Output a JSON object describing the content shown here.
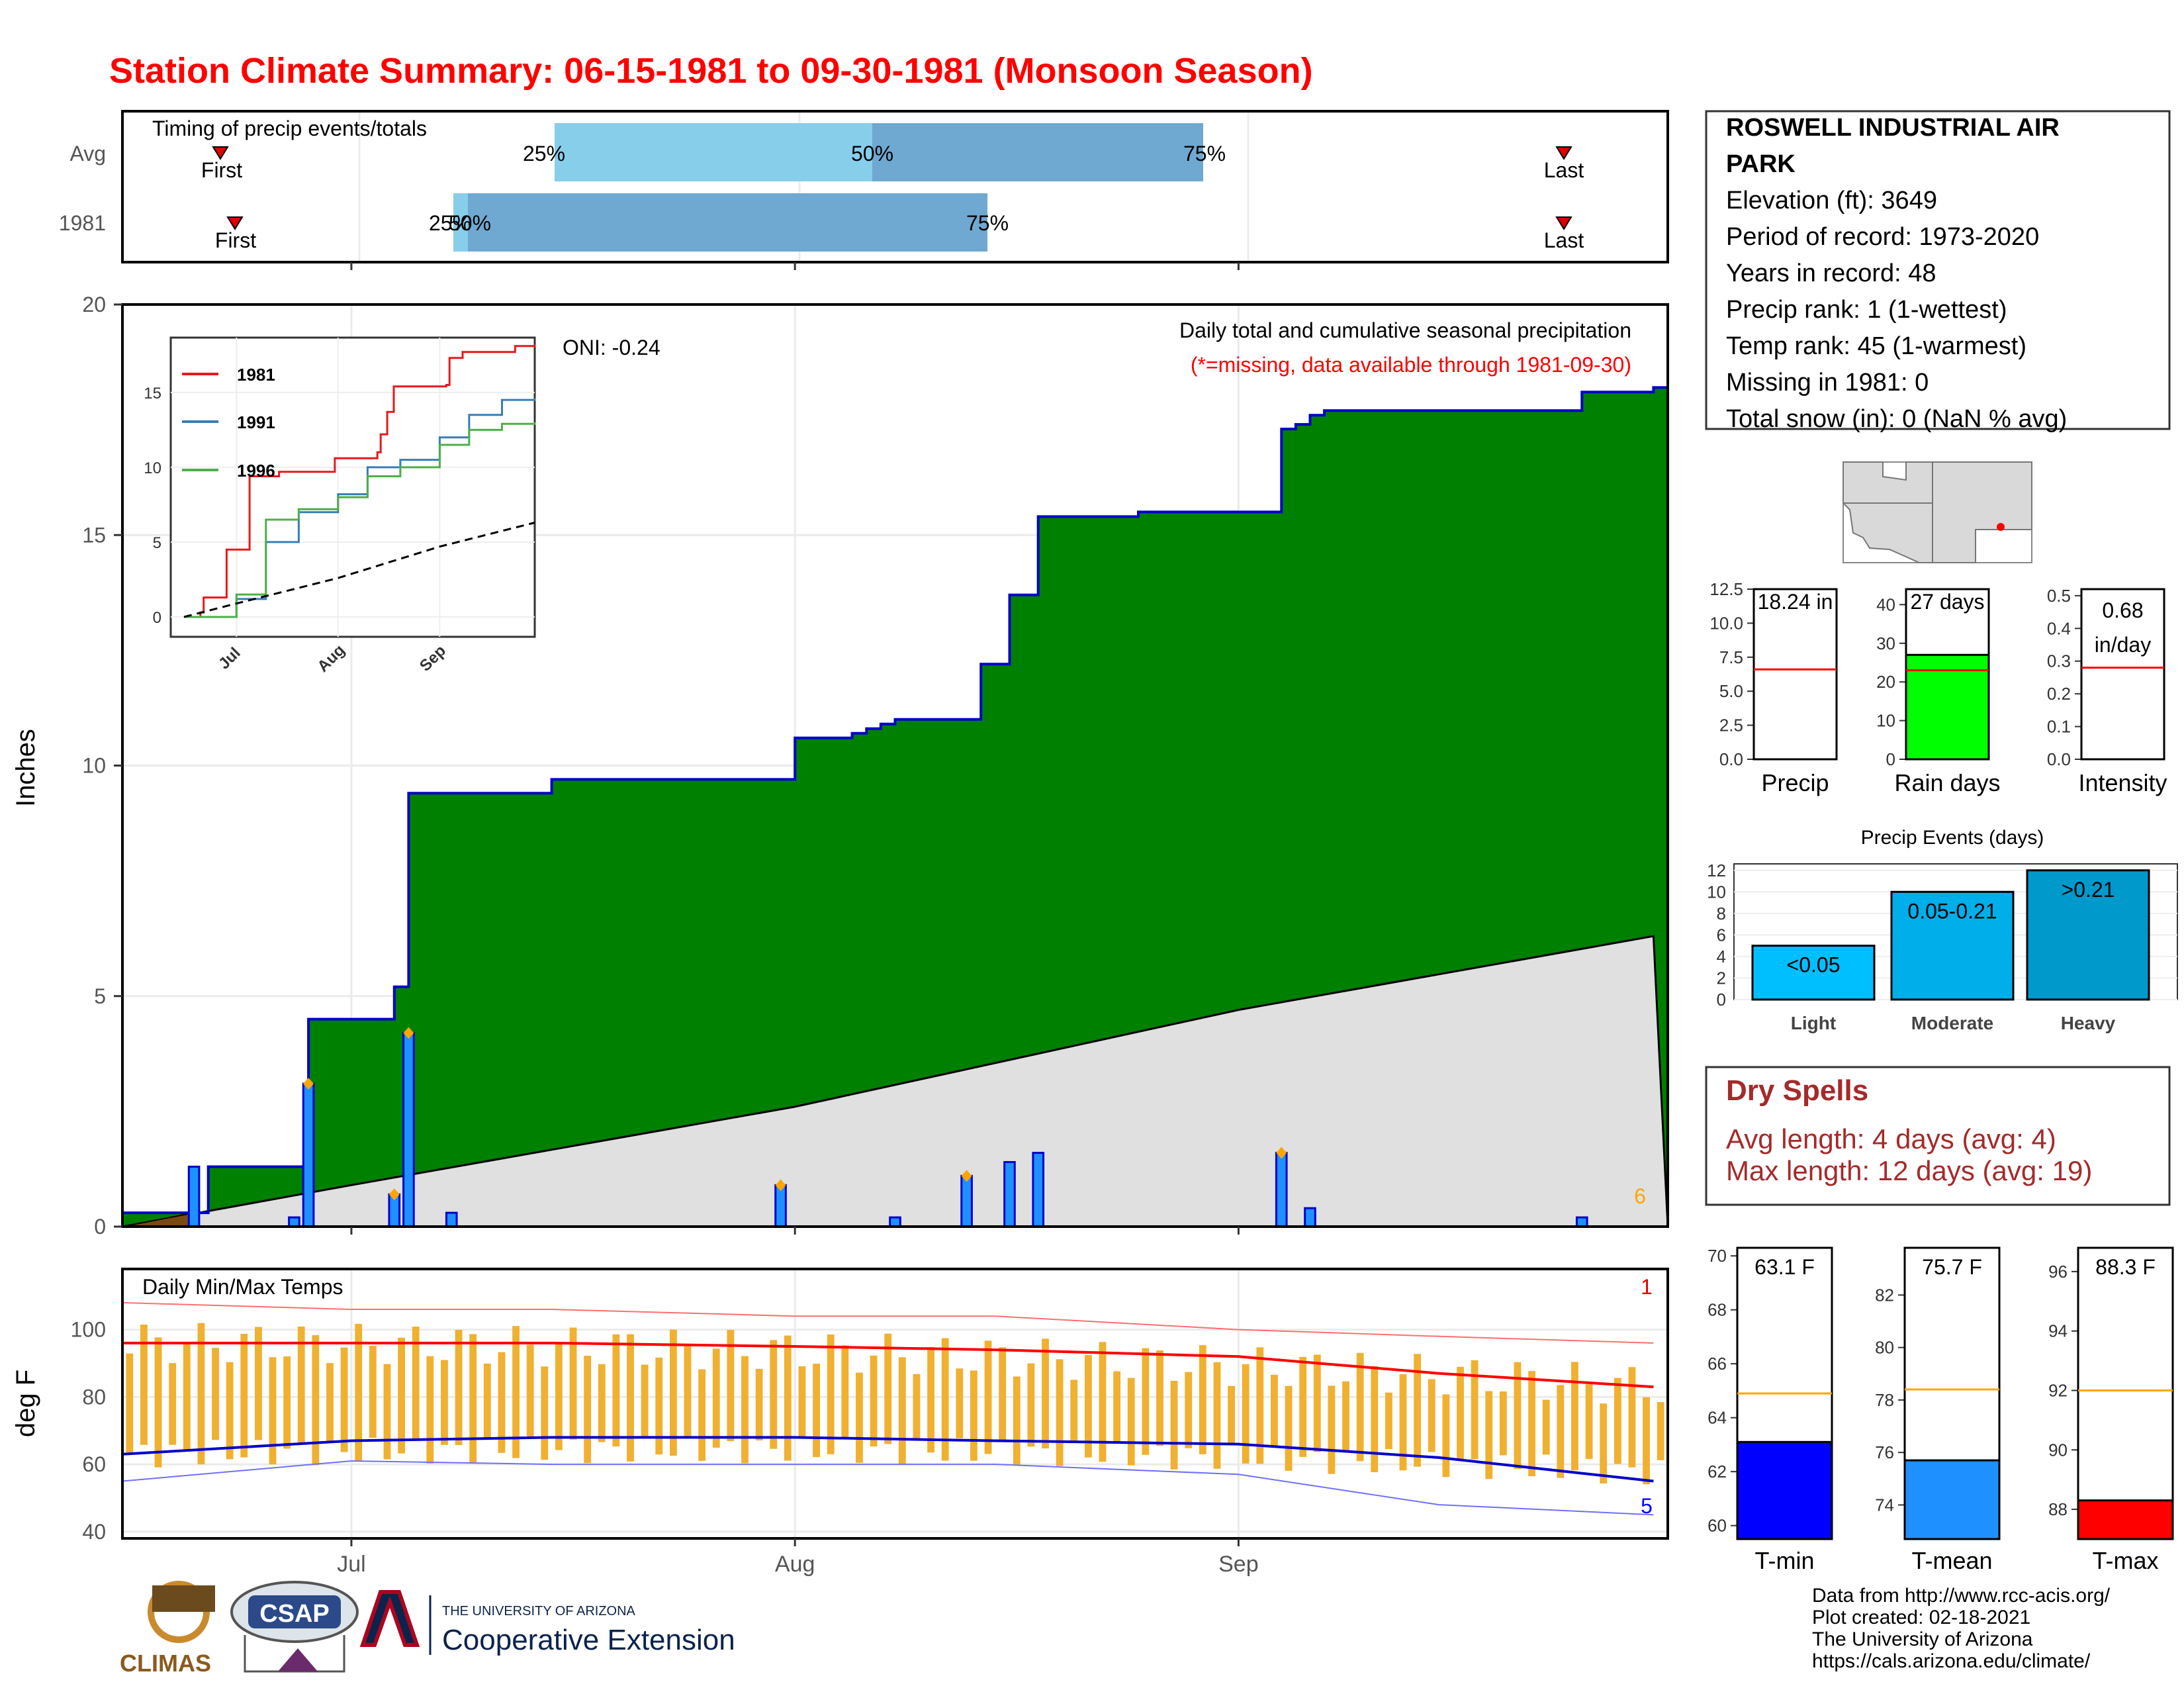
{
  "title": "Station Climate Summary: 06-15-1981 to 09-30-1981 (Monsoon Season)",
  "colors": {
    "title_red": "#ff0000",
    "green_fill": "#008000",
    "normal_gray": "#e0e0e0",
    "daily_bar": "#1e90ff",
    "outline_blue": "#0000cc",
    "marker_orange": "#ffa500",
    "temp_bar": "#f0b030",
    "dry_spell_text": "#a52a2a"
  },
  "timing": {
    "title": "Timing of precip events/totals",
    "rows": [
      "Avg",
      "1981"
    ],
    "first_label": "First",
    "last_label": "Last",
    "pct_labels": [
      "25%",
      "50%",
      "75%"
    ]
  },
  "main": {
    "ylabel": "Inches",
    "oni_label": "ONI: -0.24",
    "header_line1": "Daily total and cumulative seasonal precipitation",
    "header_line2": "(*=missing, data available through 1981-09-30)",
    "corner_count": "6",
    "y_ticks": [
      "0",
      "5",
      "10",
      "15",
      "20"
    ]
  },
  "inset": {
    "legend": [
      "1981",
      "1991",
      "1996"
    ],
    "legend_colors": [
      "#e41a1c",
      "#377eb8",
      "#4daf4a"
    ],
    "y_ticks": [
      "0",
      "5",
      "10",
      "15"
    ],
    "x_ticks": [
      "Jul",
      "Aug",
      "Sep"
    ]
  },
  "temps": {
    "title": "Daily Min/Max Temps",
    "ylabel": "deg F",
    "y_ticks": [
      "40",
      "60",
      "80",
      "100"
    ],
    "count_high": "1",
    "count_low": "5"
  },
  "x_months": [
    "Jul",
    "Aug",
    "Sep"
  ],
  "station": {
    "name": "ROSWELL INDUSTRIAL AIR PARK",
    "lines": [
      "Elevation (ft): 3649",
      "Period of record: 1973-2020",
      "Years in record: 48",
      "Precip rank: 1 (1-wettest)",
      "Temp rank: 45 (1-warmest)",
      "Missing in 1981: 0",
      "Total snow (in): 0 (NaN % avg)"
    ]
  },
  "summary_bars": [
    {
      "label": "Precip",
      "value_text": "18.24 in",
      "value": 18.24,
      "avg": 6.6,
      "ymax": 12.5,
      "ticks": [
        "0.0",
        "2.5",
        "5.0",
        "7.5",
        "10.0",
        "12.5"
      ],
      "color": "#ffffff"
    },
    {
      "label": "Rain days",
      "value_text": "27 days",
      "value": 27,
      "avg": 23,
      "ymax": 44,
      "ticks": [
        "0",
        "10",
        "20",
        "30",
        "40"
      ],
      "color": "#00ff00"
    },
    {
      "label": "Intensity",
      "value_text": "0.68 in/day",
      "value": 0.68,
      "avg": 0.28,
      "ymax": 0.52,
      "ticks": [
        "0.0",
        "0.1",
        "0.2",
        "0.3",
        "0.4",
        "0.5"
      ],
      "color": "#ffffff"
    }
  ],
  "events": {
    "title": "Precip Events (days)",
    "categories": [
      "Light",
      "Moderate",
      "Heavy"
    ],
    "bar_labels": [
      "<0.05",
      "0.05-0.21",
      ">0.21"
    ],
    "values": [
      5,
      10,
      12
    ],
    "colors": [
      "#00bfff",
      "#00aeea",
      "#0099cc"
    ],
    "ticks": [
      "0",
      "2",
      "4",
      "6",
      "8",
      "10",
      "12"
    ]
  },
  "dry_spells": {
    "title": "Dry Spells",
    "avg_line": "Avg length: 4 days (avg: 4)",
    "max_line": "Max length: 12 days (avg: 19)"
  },
  "temp_summary": [
    {
      "label": "T-min",
      "value_text": "63.1 F",
      "value": 63.1,
      "avg": 64.9,
      "ymin": 59.5,
      "ymax": 70.3,
      "ticks": [
        "60",
        "62",
        "64",
        "66",
        "68",
        "70"
      ],
      "color": "#0000ff"
    },
    {
      "label": "T-mean",
      "value_text": "75.7 F",
      "value": 75.7,
      "avg": 78.4,
      "ymin": 72.7,
      "ymax": 83.8,
      "ticks": [
        "74",
        "76",
        "78",
        "80",
        "82"
      ],
      "color": "#1e90ff"
    },
    {
      "label": "T-max",
      "value_text": "88.3 F",
      "value": 88.3,
      "avg": 92.0,
      "ymin": 87.0,
      "ymax": 96.8,
      "ticks": [
        "88",
        "90",
        "92",
        "94",
        "96"
      ],
      "color": "#ff0000"
    }
  ],
  "footer": {
    "lines": [
      "Data from http://www.rcc-acis.org/",
      "Plot created: 02-18-2021",
      "The University of Arizona",
      "https://cals.arizona.edu/climate/"
    ],
    "logo_climas": "CLIMAS",
    "logo_csap": "CSAP",
    "ua_line1": "THE UNIVERSITY OF ARIZONA",
    "ua_line2": "Cooperative Extension"
  },
  "chart_data": [
    {
      "type": "area",
      "title": "Daily total and cumulative seasonal precipitation",
      "ylabel": "Inches",
      "ylim": [
        0,
        20
      ],
      "x": [
        "06-15",
        "06-20",
        "06-21",
        "06-27",
        "06-28",
        "07-04",
        "07-05",
        "07-14",
        "07-15",
        "07-31",
        "08-01",
        "08-05",
        "08-06",
        "08-07",
        "08-08",
        "08-13",
        "08-14",
        "08-16",
        "08-18",
        "08-19",
        "08-25",
        "08-26",
        "09-03",
        "09-04",
        "09-05",
        "09-06",
        "09-07",
        "09-08",
        "09-24",
        "09-25",
        "09-30"
      ],
      "series": [
        {
          "name": "1981",
          "values": [
            0.3,
            0.3,
            1.3,
            1.3,
            4.5,
            5.2,
            9.4,
            9.4,
            9.7,
            9.7,
            10.6,
            10.7,
            10.8,
            10.9,
            11.0,
            11.0,
            12.2,
            13.7,
            15.4,
            15.4,
            15.5,
            15.5,
            15.5,
            17.3,
            17.4,
            17.6,
            17.7,
            17.7,
            17.7,
            18.1,
            18.2
          ]
        }
      ],
      "daily_precip": [
        {
          "date": "06-20",
          "value": 1.3
        },
        {
          "date": "06-27",
          "value": 0.2
        },
        {
          "date": "06-28",
          "value": 3.1
        },
        {
          "date": "07-04",
          "value": 0.7
        },
        {
          "date": "07-05",
          "value": 4.2
        },
        {
          "date": "07-08",
          "value": 0.3
        },
        {
          "date": "07-31",
          "value": 0.9
        },
        {
          "date": "08-08",
          "value": 0.2
        },
        {
          "date": "08-13",
          "value": 1.1
        },
        {
          "date": "08-16",
          "value": 1.4
        },
        {
          "date": "08-18",
          "value": 1.6
        },
        {
          "date": "09-04",
          "value": 1.6
        },
        {
          "date": "09-06",
          "value": 0.4
        },
        {
          "date": "09-25",
          "value": 0.2
        }
      ],
      "normal_cumulative": {
        "x": [
          "06-15",
          "07-01",
          "08-01",
          "09-01",
          "09-30"
        ],
        "values": [
          0.0,
          0.9,
          2.6,
          4.7,
          6.3
        ]
      }
    },
    {
      "type": "line",
      "title": "Daily Min/Max Temps",
      "ylabel": "deg F",
      "ylim": [
        38,
        118
      ],
      "x": [
        "06-15",
        "07-01",
        "07-15",
        "08-01",
        "08-15",
        "09-01",
        "09-15",
        "09-30"
      ],
      "series": [
        {
          "name": "Avg max",
          "values": [
            96,
            96,
            96,
            95,
            94,
            92,
            87,
            83
          ]
        },
        {
          "name": "Avg min",
          "values": [
            63,
            67,
            68,
            68,
            67,
            66,
            62,
            55
          ]
        },
        {
          "name": "Record high",
          "values": [
            108,
            106,
            106,
            104,
            104,
            100,
            98,
            96
          ]
        },
        {
          "name": "Record low",
          "values": [
            55,
            61,
            60,
            60,
            60,
            57,
            48,
            45
          ]
        }
      ]
    },
    {
      "type": "bar",
      "title": "Precip Events (days)",
      "categories": [
        "Light",
        "Moderate",
        "Heavy"
      ],
      "values": [
        5,
        10,
        12
      ]
    }
  ]
}
